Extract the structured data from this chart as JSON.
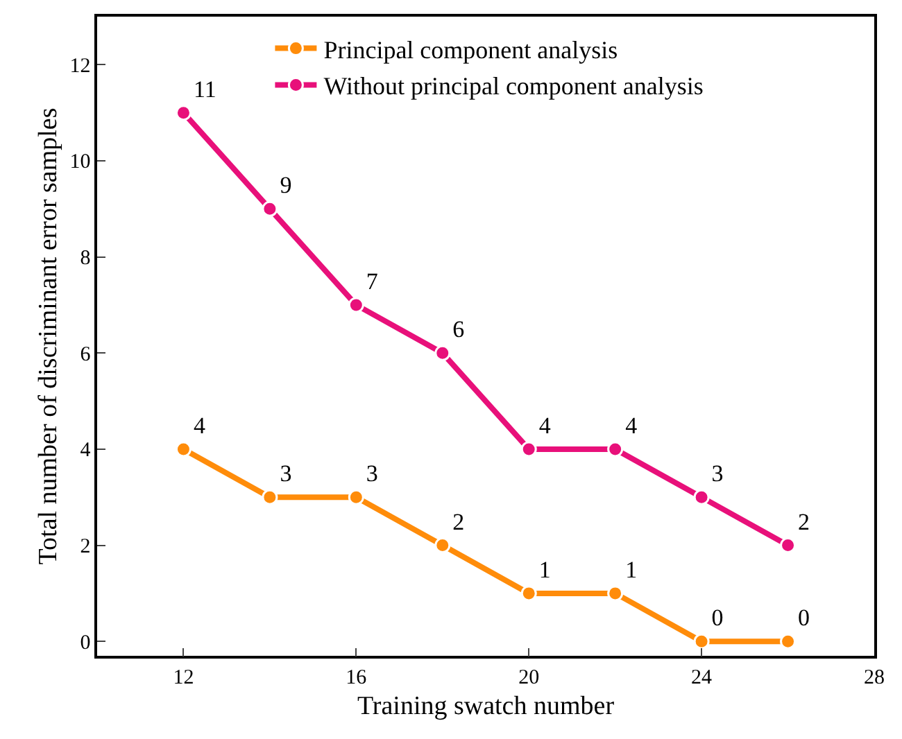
{
  "chart_data": {
    "type": "line",
    "xlabel": "Training swatch number",
    "ylabel": "Total number of discriminant error samples",
    "x": [
      12,
      14,
      16,
      18,
      20,
      22,
      24,
      26
    ],
    "series": [
      {
        "name": "Principal component analysis",
        "color": "#ff8c0a",
        "values": [
          4,
          3,
          3,
          2,
          1,
          1,
          0,
          0
        ]
      },
      {
        "name": "Without principal component analysis",
        "color": "#e8107a",
        "values": [
          11,
          9,
          7,
          6,
          4,
          4,
          3,
          2
        ]
      }
    ],
    "xlim": [
      10,
      28
    ],
    "xticks": [
      12,
      16,
      20,
      24,
      28
    ],
    "ylim": [
      -0.3,
      13
    ],
    "yticks": [
      0,
      2,
      4,
      6,
      8,
      10,
      12
    ],
    "data_labels": true,
    "legend": "top",
    "marker": "circle",
    "line_style": "solid"
  }
}
